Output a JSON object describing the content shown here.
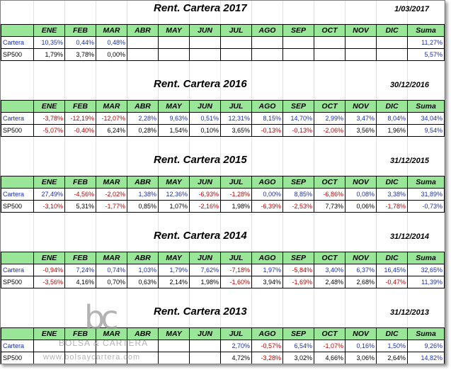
{
  "header_cols": [
    "ENE",
    "FEB",
    "MAR",
    "ABR",
    "MAY",
    "JUN",
    "JUL",
    "AGO",
    "SEP",
    "OCT",
    "NOV",
    "DIC",
    "Suma"
  ],
  "watermark": {
    "logo": "bc",
    "name": "BOLSA & CARTERA",
    "url": "www.bolsaycartera.com"
  },
  "tables": [
    {
      "title": "Rent. Cartera 2017",
      "date": "1/03/2017",
      "rows": [
        {
          "label": "Cartera",
          "values": [
            "10,35%",
            "0,44%",
            "0,48%",
            "",
            "",
            "",
            "",
            "",
            "",
            "",
            "",
            "",
            "11,27%"
          ]
        },
        {
          "label": "SP500",
          "values": [
            "1,79%",
            "3,78%",
            "0,00%",
            "",
            "",
            "",
            "",
            "",
            "",
            "",
            "",
            "",
            "5,57%"
          ]
        }
      ]
    },
    {
      "title": "Rent. Cartera 2016",
      "date": "30/12/2016",
      "rows": [
        {
          "label": "Cartera",
          "values": [
            "-3,78%",
            "-12,19%",
            "-12,07%",
            "2,28%",
            "9,63%",
            "0,51%",
            "12,31%",
            "8,15%",
            "14,70%",
            "2,99%",
            "3,47%",
            "8,04%",
            "34,04%"
          ]
        },
        {
          "label": "SP500",
          "values": [
            "-5,07%",
            "-0,40%",
            "6,24%",
            "0,28%",
            "1,54%",
            "0,10%",
            "3,65%",
            "-0,13%",
            "-0,13%",
            "-2,06%",
            "3,56%",
            "1,96%",
            "9,54%"
          ]
        }
      ]
    },
    {
      "title": "Rent. Cartera 2015",
      "date": "31/12/2015",
      "rows": [
        {
          "label": "Cartera",
          "values": [
            "27,49%",
            "-4,56%",
            "-2,02%",
            "1,38%",
            "12,36%",
            "-6,93%",
            "-1,28%",
            "0,00%",
            "8,85%",
            "-6,86%",
            "0,08%",
            "3,38%",
            "31,89%"
          ]
        },
        {
          "label": "SP500",
          "values": [
            "-3,10%",
            "5,31%",
            "-1,77%",
            "0,85%",
            "1,07%",
            "-2,16%",
            "1,98%",
            "-6,39%",
            "-2,53%",
            "7,73%",
            "0,06%",
            "-1,78%",
            "-0,73%"
          ]
        }
      ]
    },
    {
      "title": "Rent. Cartera 2014",
      "date": "31/12/2014",
      "rows": [
        {
          "label": "Cartera",
          "values": [
            "-0,94%",
            "7,24%",
            "0,74%",
            "1,03%",
            "1,79%",
            "7,62%",
            "-7,18%",
            "1,97%",
            "-5,84%",
            "3,40%",
            "6,37%",
            "16,45%",
            "32,65%"
          ]
        },
        {
          "label": "SP500",
          "values": [
            "-3,56%",
            "4,16%",
            "0,70%",
            "0,63%",
            "2,14%",
            "1,98%",
            "-1,60%",
            "3,94%",
            "-1,69%",
            "2,48%",
            "2,68%",
            "-0,47%",
            "11,39%"
          ]
        }
      ]
    },
    {
      "title": "Rent. Cartera 2013",
      "date": "31/12/2013",
      "rows": [
        {
          "label": "Cartera",
          "values": [
            "",
            "",
            "",
            "",
            "",
            "",
            "2,70%",
            "-0,57%",
            "6,54%",
            "-1,07%",
            "0,16%",
            "1,50%",
            "9,26%"
          ]
        },
        {
          "label": "SP500",
          "values": [
            "",
            "",
            "",
            "",
            "",
            "",
            "4,72%",
            "-3,28%",
            "3,02%",
            "4,66%",
            "3,06%",
            "2,64%",
            "14,82%"
          ]
        }
      ]
    }
  ]
}
